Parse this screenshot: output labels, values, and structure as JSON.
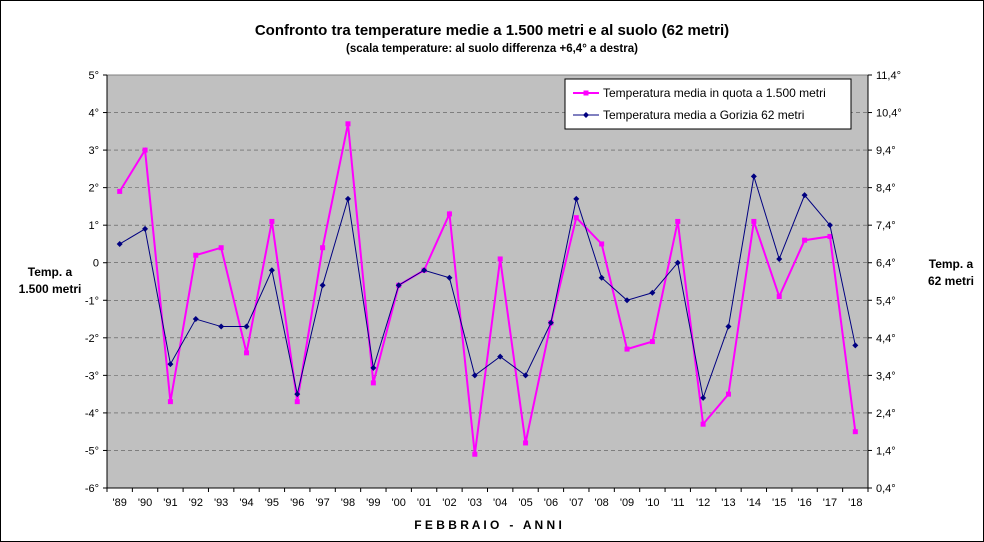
{
  "chart_data": {
    "type": "line",
    "title": "Confronto tra temperature medie a 1.500 metri e al suolo (62 metri)",
    "subtitle": "(scala temperature: al suolo differenza +6,4° a destra)",
    "xlabel": "F E B B R A I O   -   A N N I",
    "ylabel_left": [
      "Temp. a",
      "1.500 metri"
    ],
    "ylabel_right": [
      "Temp. a",
      "62 metri"
    ],
    "categories": [
      "'89",
      "'90",
      "'91",
      "'92",
      "'93",
      "'94",
      "'95",
      "'96",
      "'97",
      "'98",
      "'99",
      "'00",
      "'01",
      "'02",
      "'03",
      "'04",
      "'05",
      "'06",
      "'07",
      "'08",
      "'09",
      "'10",
      "'11",
      "'12",
      "'13",
      "'14",
      "'15",
      "'16",
      "'17",
      "'18"
    ],
    "ylim": [
      -6,
      5
    ],
    "ylim_right": [
      0.4,
      11.4
    ],
    "yticks_left": [
      "5°",
      "4°",
      "3°",
      "2°",
      "1°",
      "0",
      "-1°",
      "-2°",
      "-3°",
      "-4°",
      "-5°",
      "-6°"
    ],
    "yticks_right": [
      "11,4°",
      "10,4°",
      "9,4°",
      "8,4°",
      "7,4°",
      "6,4°",
      "5,4°",
      "4,4°",
      "3,4°",
      "2,4°",
      "1,4°",
      "0,4°"
    ],
    "grid": true,
    "legend_position": "top-right",
    "series": [
      {
        "name": "Temperatura media in quota a 1.500 metri",
        "color": "#ff00ff",
        "axis": "left",
        "values": [
          1.9,
          3.0,
          -3.7,
          0.2,
          0.4,
          -2.4,
          1.1,
          -3.7,
          0.4,
          3.7,
          -3.2,
          -0.6,
          -0.2,
          1.3,
          -5.1,
          0.1,
          -4.8,
          -1.6,
          1.2,
          0.5,
          -2.3,
          -2.1,
          1.1,
          -4.3,
          -3.5,
          1.1,
          -0.9,
          0.6,
          0.7,
          -4.5
        ]
      },
      {
        "name": "Temperatura media a Gorizia  62 metri",
        "color": "#000080",
        "axis": "right",
        "values": [
          6.9,
          7.3,
          3.7,
          4.9,
          4.7,
          4.7,
          6.2,
          2.9,
          5.8,
          8.1,
          3.6,
          5.8,
          6.2,
          6.0,
          3.4,
          3.9,
          3.4,
          4.8,
          8.1,
          6.0,
          5.4,
          5.6,
          6.4,
          2.8,
          4.7,
          8.7,
          6.5,
          8.2,
          7.4,
          4.2
        ]
      }
    ]
  },
  "colors": {
    "plot_background": "#c0c0c0",
    "gridline": "#000000"
  }
}
